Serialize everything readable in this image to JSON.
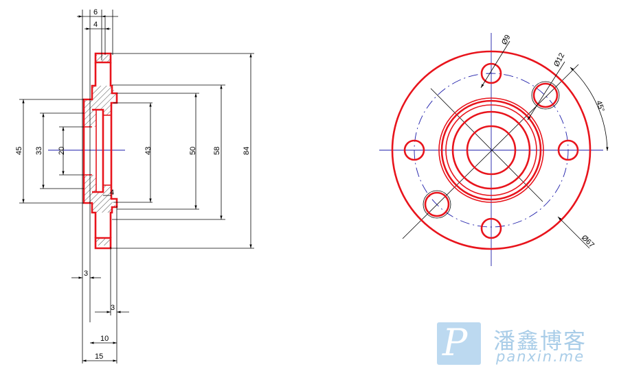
{
  "section_view": {
    "dimensions": {
      "width_6": "6",
      "width_4": "4",
      "dia_45": "45",
      "dia_33": "33",
      "dia_20": "20",
      "dia_43": "43",
      "dia_50": "50",
      "dia_58": "58",
      "dia_84": "84",
      "step_4": "4",
      "thk_3_left": "3",
      "thk_3_right": "3",
      "len_10": "10",
      "len_15": "15"
    }
  },
  "front_view": {
    "dimensions": {
      "hole_dia_9": "Ø9",
      "hole_dia_12": "Ø12",
      "angle_45": "45°",
      "pcd_67": "Ø67"
    }
  },
  "watermark": {
    "logo_letter": "P",
    "title": "潘鑫博客",
    "url": "panxin.me"
  },
  "colors": {
    "outline": "#e8141c",
    "centerline": "#1a1aa8",
    "dimension": "#000000",
    "watermark": "#a9cde8"
  }
}
